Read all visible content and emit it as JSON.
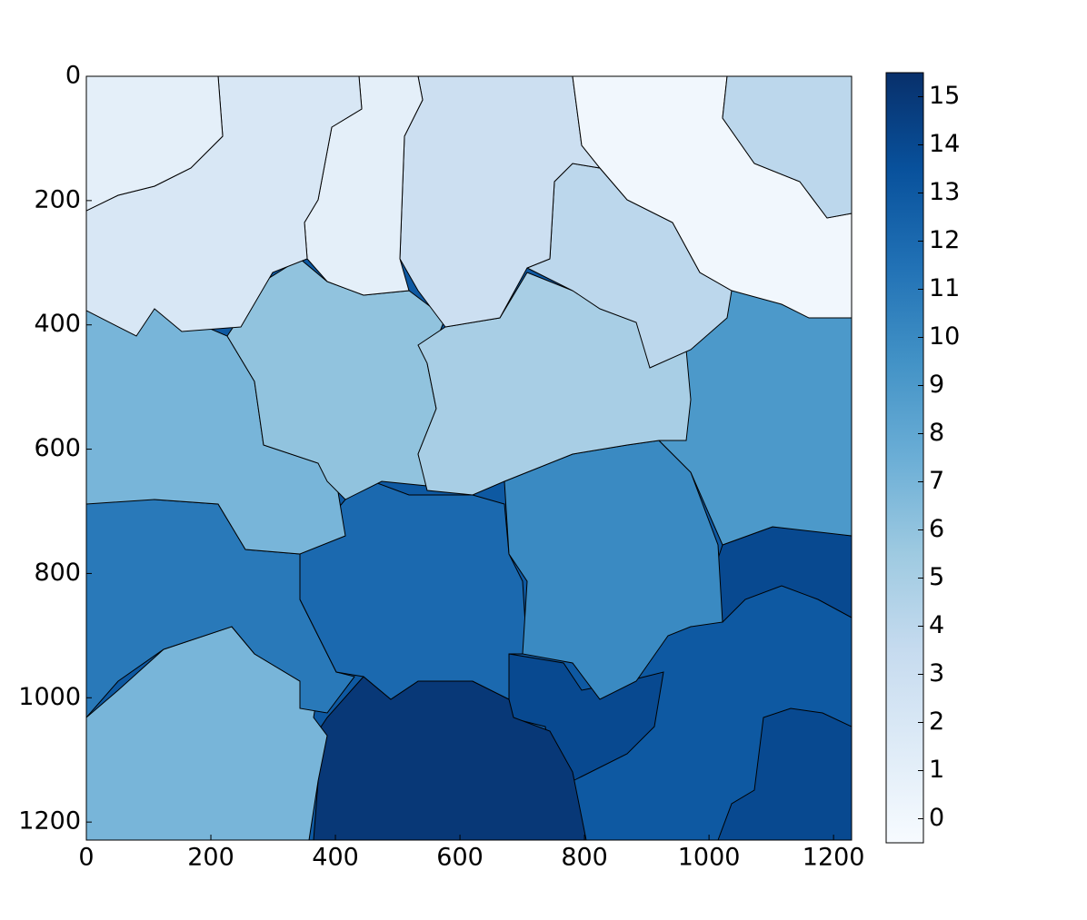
{
  "chart_data": {
    "type": "image",
    "values": [
      13,
      14,
      14,
      14,
      15,
      7,
      11,
      12,
      10,
      9,
      7,
      6,
      5,
      4,
      3,
      0,
      4,
      1,
      2,
      1
    ],
    "colormap": [
      "#f7fbff",
      "#deebf7",
      "#c6dbef",
      "#9ecae1",
      "#6baed6",
      "#4292c6",
      "#2171b5",
      "#08519c",
      "#08306b"
    ],
    "clim": [
      -0.5,
      15.5
    ],
    "cticks": [
      0,
      1,
      2,
      3,
      4,
      5,
      6,
      7,
      8,
      9,
      10,
      11,
      12,
      13,
      14,
      15
    ],
    "xlim": [
      0,
      1229
    ],
    "xticks": [
      0,
      200,
      400,
      600,
      800,
      1000,
      1200
    ],
    "ylim": [
      1229,
      0
    ],
    "yticks": [
      0,
      200,
      400,
      600,
      800,
      1000,
      1200
    ]
  }
}
